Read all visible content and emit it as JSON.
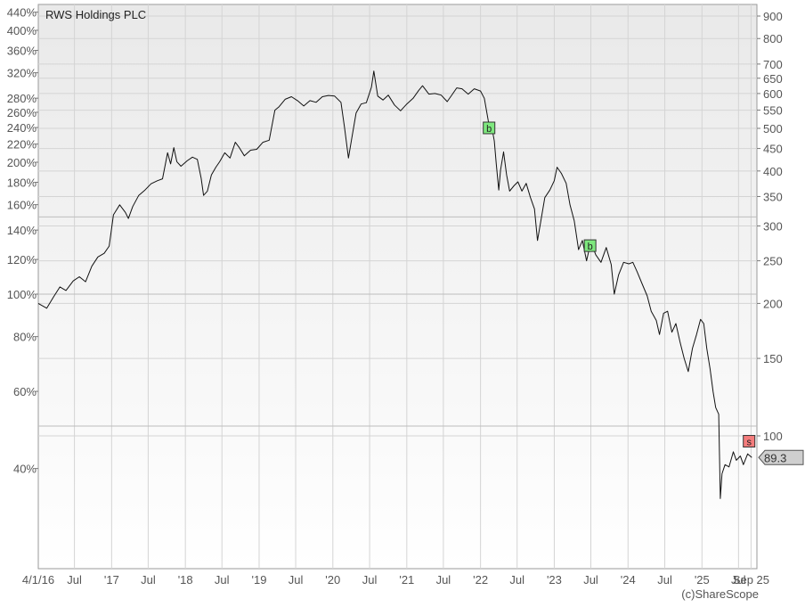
{
  "chart_data": {
    "type": "line",
    "title": "RWS Holdings PLC",
    "credit": "(c)ShareScope",
    "x_axis": {
      "range": [
        "2016-01-04",
        "2025-09-30"
      ],
      "ticks": [
        {
          "date": "2016-01-04",
          "label": "4/1/16"
        },
        {
          "date": "2016-07-01",
          "label": "Jul"
        },
        {
          "date": "2017-01-01",
          "label": "'17"
        },
        {
          "date": "2017-07-01",
          "label": "Jul"
        },
        {
          "date": "2018-01-01",
          "label": "'18"
        },
        {
          "date": "2018-07-01",
          "label": "Jul"
        },
        {
          "date": "2019-01-01",
          "label": "'19"
        },
        {
          "date": "2019-07-01",
          "label": "Jul"
        },
        {
          "date": "2020-01-01",
          "label": "'20"
        },
        {
          "date": "2020-07-01",
          "label": "Jul"
        },
        {
          "date": "2021-01-01",
          "label": "'21"
        },
        {
          "date": "2021-07-01",
          "label": "Jul"
        },
        {
          "date": "2022-01-01",
          "label": "'22"
        },
        {
          "date": "2022-07-01",
          "label": "Jul"
        },
        {
          "date": "2023-01-01",
          "label": "'23"
        },
        {
          "date": "2023-07-01",
          "label": "Jul"
        },
        {
          "date": "2024-01-01",
          "label": "'24"
        },
        {
          "date": "2024-07-01",
          "label": "Jul"
        },
        {
          "date": "2025-01-01",
          "label": "'25"
        },
        {
          "date": "2025-07-01",
          "label": "Jul"
        },
        {
          "date": "2025-09-01",
          "label": "Sep 25"
        }
      ]
    },
    "y_axis_left": {
      "scale": "log",
      "ticks": [
        {
          "value": 40,
          "label": "40%"
        },
        {
          "value": 60,
          "label": "60%"
        },
        {
          "value": 80,
          "label": "80%"
        },
        {
          "value": 100,
          "label": "100%"
        },
        {
          "value": 120,
          "label": "120%"
        },
        {
          "value": 140,
          "label": "140%"
        },
        {
          "value": 160,
          "label": "160%"
        },
        {
          "value": 180,
          "label": "180%"
        },
        {
          "value": 200,
          "label": "200%"
        },
        {
          "value": 220,
          "label": "220%"
        },
        {
          "value": 240,
          "label": "240%"
        },
        {
          "value": 260,
          "label": "260%"
        },
        {
          "value": 280,
          "label": "280%"
        },
        {
          "value": 320,
          "label": "320%"
        },
        {
          "value": 360,
          "label": "360%"
        },
        {
          "value": 400,
          "label": "400%"
        },
        {
          "value": 440,
          "label": "440%"
        }
      ],
      "reference_lines": [
        50,
        100,
        150
      ]
    },
    "y_axis_right": {
      "scale": "log",
      "ticks": [
        {
          "value": 100,
          "label": "100"
        },
        {
          "value": 150,
          "label": "150"
        },
        {
          "value": 200,
          "label": "200"
        },
        {
          "value": 250,
          "label": "250"
        },
        {
          "value": 300,
          "label": "300"
        },
        {
          "value": 350,
          "label": "350"
        },
        {
          "value": 400,
          "label": "400"
        },
        {
          "value": 450,
          "label": "450"
        },
        {
          "value": 500,
          "label": "500"
        },
        {
          "value": 550,
          "label": "550"
        },
        {
          "value": 600,
          "label": "600"
        },
        {
          "value": 650,
          "label": "650"
        },
        {
          "value": 700,
          "label": "700"
        },
        {
          "value": 800,
          "label": "800"
        },
        {
          "value": 900,
          "label": "900"
        }
      ]
    },
    "grid": true,
    "series": [
      {
        "color": "#111111",
        "points": [
          [
            "2016-01-04",
            200
          ],
          [
            "2016-02-15",
            195
          ],
          [
            "2016-03-20",
            207
          ],
          [
            "2016-04-20",
            218
          ],
          [
            "2016-05-20",
            214
          ],
          [
            "2016-06-25",
            225
          ],
          [
            "2016-07-25",
            230
          ],
          [
            "2016-08-25",
            224
          ],
          [
            "2016-09-25",
            243
          ],
          [
            "2016-10-25",
            255
          ],
          [
            "2016-11-25",
            260
          ],
          [
            "2016-12-20",
            270
          ],
          [
            "2017-01-10",
            318
          ],
          [
            "2017-02-10",
            335
          ],
          [
            "2017-03-10",
            322
          ],
          [
            "2017-03-25",
            312
          ],
          [
            "2017-04-15",
            332
          ],
          [
            "2017-05-15",
            352
          ],
          [
            "2017-06-15",
            362
          ],
          [
            "2017-07-15",
            374
          ],
          [
            "2017-08-15",
            380
          ],
          [
            "2017-09-10",
            384
          ],
          [
            "2017-10-05",
            440
          ],
          [
            "2017-10-20",
            415
          ],
          [
            "2017-11-05",
            452
          ],
          [
            "2017-11-20",
            420
          ],
          [
            "2017-12-10",
            410
          ],
          [
            "2018-01-10",
            422
          ],
          [
            "2018-02-05",
            430
          ],
          [
            "2018-03-01",
            425
          ],
          [
            "2018-03-20",
            385
          ],
          [
            "2018-04-01",
            352
          ],
          [
            "2018-04-20",
            360
          ],
          [
            "2018-05-10",
            392
          ],
          [
            "2018-06-01",
            408
          ],
          [
            "2018-06-20",
            420
          ],
          [
            "2018-07-15",
            440
          ],
          [
            "2018-08-10",
            428
          ],
          [
            "2018-09-05",
            465
          ],
          [
            "2018-09-25",
            452
          ],
          [
            "2018-10-20",
            433
          ],
          [
            "2018-11-20",
            446
          ],
          [
            "2018-12-20",
            448
          ],
          [
            "2019-01-20",
            465
          ],
          [
            "2019-02-20",
            470
          ],
          [
            "2019-03-20",
            550
          ],
          [
            "2019-04-10",
            560
          ],
          [
            "2019-05-10",
            582
          ],
          [
            "2019-06-10",
            590
          ],
          [
            "2019-07-10",
            578
          ],
          [
            "2019-08-10",
            562
          ],
          [
            "2019-09-10",
            578
          ],
          [
            "2019-10-10",
            573
          ],
          [
            "2019-11-10",
            590
          ],
          [
            "2019-12-10",
            594
          ],
          [
            "2020-01-10",
            592
          ],
          [
            "2020-02-10",
            573
          ],
          [
            "2020-02-28",
            502
          ],
          [
            "2020-03-18",
            428
          ],
          [
            "2020-04-05",
            478
          ],
          [
            "2020-04-25",
            542
          ],
          [
            "2020-05-20",
            568
          ],
          [
            "2020-06-15",
            572
          ],
          [
            "2020-07-10",
            620
          ],
          [
            "2020-07-22",
            675
          ],
          [
            "2020-08-10",
            592
          ],
          [
            "2020-09-05",
            580
          ],
          [
            "2020-10-01",
            595
          ],
          [
            "2020-11-01",
            565
          ],
          [
            "2020-12-01",
            548
          ],
          [
            "2021-01-01",
            568
          ],
          [
            "2021-02-01",
            585
          ],
          [
            "2021-03-01",
            610
          ],
          [
            "2021-03-20",
            625
          ],
          [
            "2021-04-20",
            598
          ],
          [
            "2021-05-20",
            600
          ],
          [
            "2021-06-20",
            595
          ],
          [
            "2021-07-20",
            575
          ],
          [
            "2021-08-15",
            598
          ],
          [
            "2021-09-05",
            618
          ],
          [
            "2021-10-01",
            615
          ],
          [
            "2021-11-01",
            598
          ],
          [
            "2021-12-01",
            615
          ],
          [
            "2022-01-01",
            608
          ],
          [
            "2022-01-20",
            585
          ],
          [
            "2022-02-10",
            515
          ],
          [
            "2022-02-25",
            505
          ],
          [
            "2022-03-10",
            468
          ],
          [
            "2022-03-20",
            415
          ],
          [
            "2022-04-01",
            362
          ],
          [
            "2022-04-10",
            402
          ],
          [
            "2022-04-25",
            442
          ],
          [
            "2022-05-10",
            392
          ],
          [
            "2022-05-25",
            360
          ],
          [
            "2022-06-15",
            370
          ],
          [
            "2022-07-05",
            378
          ],
          [
            "2022-07-25",
            360
          ],
          [
            "2022-08-15",
            375
          ],
          [
            "2022-09-05",
            348
          ],
          [
            "2022-09-25",
            328
          ],
          [
            "2022-10-10",
            278
          ],
          [
            "2022-10-25",
            305
          ],
          [
            "2022-11-15",
            348
          ],
          [
            "2022-12-10",
            362
          ],
          [
            "2023-01-01",
            380
          ],
          [
            "2023-01-15",
            408
          ],
          [
            "2023-02-05",
            395
          ],
          [
            "2023-03-01",
            375
          ],
          [
            "2023-03-20",
            335
          ],
          [
            "2023-04-10",
            308
          ],
          [
            "2023-05-01",
            265
          ],
          [
            "2023-05-20",
            278
          ],
          [
            "2023-06-10",
            250
          ],
          [
            "2023-07-01",
            276
          ],
          [
            "2023-07-25",
            258
          ],
          [
            "2023-08-20",
            248
          ],
          [
            "2023-09-15",
            268
          ],
          [
            "2023-10-10",
            245
          ],
          [
            "2023-10-25",
            210
          ],
          [
            "2023-11-15",
            232
          ],
          [
            "2023-12-10",
            248
          ],
          [
            "2024-01-05",
            246
          ],
          [
            "2024-01-25",
            248
          ],
          [
            "2024-02-15",
            236
          ],
          [
            "2024-03-10",
            222
          ],
          [
            "2024-04-05",
            208
          ],
          [
            "2024-04-25",
            192
          ],
          [
            "2024-05-20",
            183
          ],
          [
            "2024-06-05",
            170
          ],
          [
            "2024-06-25",
            190
          ],
          [
            "2024-07-15",
            192
          ],
          [
            "2024-08-05",
            172
          ],
          [
            "2024-08-25",
            180
          ],
          [
            "2024-09-15",
            163
          ],
          [
            "2024-10-05",
            150
          ],
          [
            "2024-10-25",
            140
          ],
          [
            "2024-11-15",
            158
          ],
          [
            "2024-12-05",
            170
          ],
          [
            "2024-12-25",
            184
          ],
          [
            "2025-01-10",
            180
          ],
          [
            "2025-01-25",
            158
          ],
          [
            "2025-02-10",
            142
          ],
          [
            "2025-02-25",
            126
          ],
          [
            "2025-03-10",
            116
          ],
          [
            "2025-03-25",
            112
          ],
          [
            "2025-04-02",
            72
          ],
          [
            "2025-04-10",
            82
          ],
          [
            "2025-04-25",
            86
          ],
          [
            "2025-05-15",
            85
          ],
          [
            "2025-06-05",
            92
          ],
          [
            "2025-06-20",
            88
          ],
          [
            "2025-07-10",
            90
          ],
          [
            "2025-07-25",
            86
          ],
          [
            "2025-08-15",
            91
          ],
          [
            "2025-09-05",
            89.3
          ]
        ]
      }
    ],
    "markers": [
      {
        "label": "b",
        "date": "2022-02-10",
        "value": 500,
        "color": "#7ee87e"
      },
      {
        "label": "b",
        "date": "2023-06-25",
        "value": 270,
        "color": "#7ee87e"
      },
      {
        "label": "s",
        "date": "2025-08-20",
        "value": 97,
        "color": "#f47c7c"
      }
    ],
    "last_value": {
      "label": "89.3",
      "value": 89.3
    }
  }
}
